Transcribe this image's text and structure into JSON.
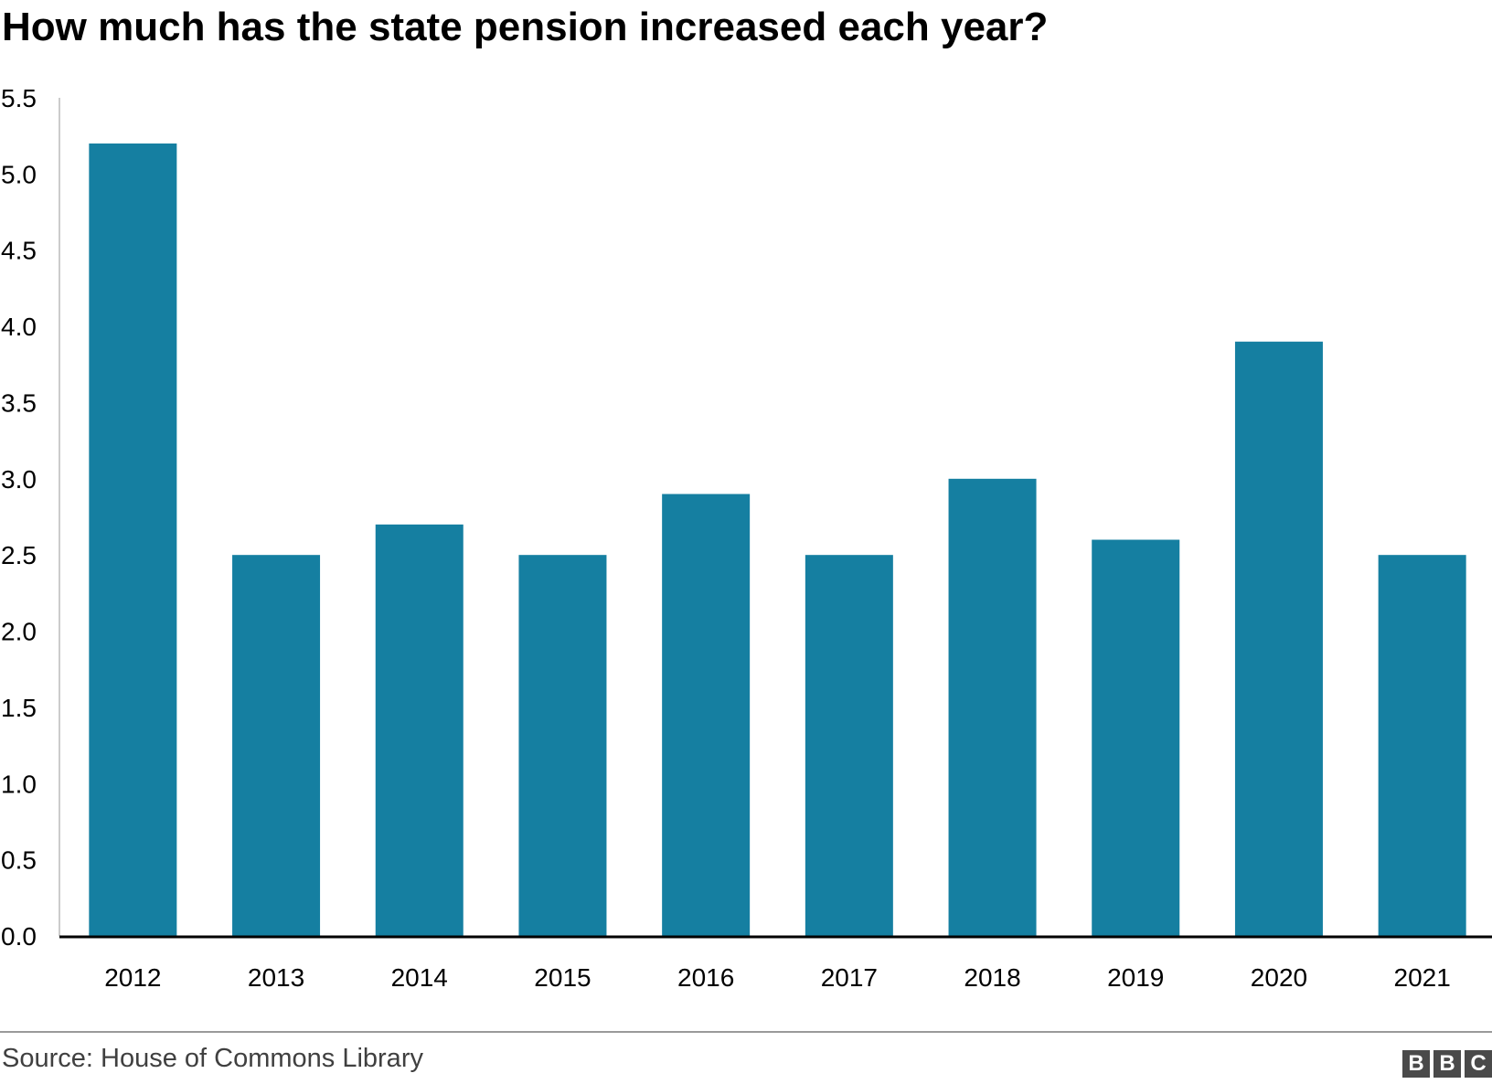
{
  "chart_data": {
    "type": "bar",
    "title": "How much has the state pension increased each year?",
    "categories": [
      "2012",
      "2013",
      "2014",
      "2015",
      "2016",
      "2017",
      "2018",
      "2019",
      "2020",
      "2021"
    ],
    "values": [
      5.2,
      2.5,
      2.7,
      2.5,
      2.9,
      2.5,
      3.0,
      2.6,
      3.9,
      2.5
    ],
    "xlabel": "",
    "ylabel": "",
    "ylim": [
      0,
      5.5
    ],
    "yticks": [
      "0.0",
      "0.5",
      "1.0",
      "1.5",
      "2.0",
      "2.5",
      "3.0",
      "3.5",
      "4.0",
      "4.5",
      "5.0",
      "5.5"
    ],
    "grid": false,
    "bar_color": "#157fa1",
    "axis_color": "#000000"
  },
  "footer": {
    "source": "Source: House of Commons Library",
    "logo_letters": [
      "B",
      "B",
      "C"
    ]
  }
}
